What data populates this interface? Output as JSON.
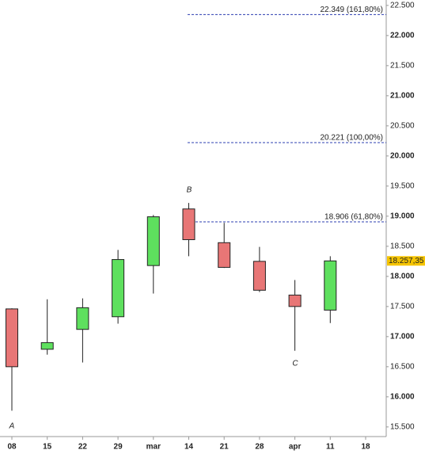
{
  "chart_data": {
    "type": "candlestick",
    "categories": [
      "08",
      "15",
      "22",
      "29",
      "mar",
      "14",
      "21",
      "28",
      "apr",
      "11",
      "18"
    ],
    "open": [
      17460,
      16790,
      17120,
      17330,
      18180,
      19120,
      18560,
      18250,
      17690,
      17440,
      null
    ],
    "high": [
      17470,
      17620,
      17635,
      18440,
      19020,
      19220,
      18890,
      18490,
      17940,
      18335,
      null
    ],
    "low": [
      15770,
      16700,
      16570,
      17215,
      17715,
      18335,
      18140,
      17740,
      16765,
      17225,
      null
    ],
    "close": [
      16500,
      16900,
      17480,
      18280,
      18990,
      18610,
      18150,
      17770,
      17500,
      18257.35,
      null
    ],
    "up_color": "#5ee05e",
    "down_color": "#e87676",
    "ylim": [
      15340,
      22590
    ],
    "yticks": [
      {
        "value": 15500,
        "label": "15.500"
      },
      {
        "value": 16000,
        "label": "16.000"
      },
      {
        "value": 16500,
        "label": "16.500"
      },
      {
        "value": 17000,
        "label": "17.000"
      },
      {
        "value": 17500,
        "label": "17.500"
      },
      {
        "value": 18000,
        "label": "18.000"
      },
      {
        "value": 18500,
        "label": "18.500"
      },
      {
        "value": 19000,
        "label": "19.000"
      },
      {
        "value": 19500,
        "label": "19.500"
      },
      {
        "value": 20000,
        "label": "20.000"
      },
      {
        "value": 20500,
        "label": "20.500"
      },
      {
        "value": 21000,
        "label": "21.000"
      },
      {
        "value": 21500,
        "label": "21.500"
      },
      {
        "value": 22000,
        "label": "22.000"
      },
      {
        "value": 22500,
        "label": "22.500"
      }
    ],
    "fib_levels": [
      {
        "value": 22349,
        "label": "22.349 (161,80%)"
      },
      {
        "value": 20221,
        "label": "20.221 (100,00%)"
      },
      {
        "value": 18906,
        "label": "18.906 (61,80%)"
      }
    ],
    "fib_color": "#2d3fb0",
    "last_price": {
      "value": 18257.35,
      "label": "18.257,35"
    },
    "annotations": [
      "A",
      "B",
      "C"
    ]
  }
}
